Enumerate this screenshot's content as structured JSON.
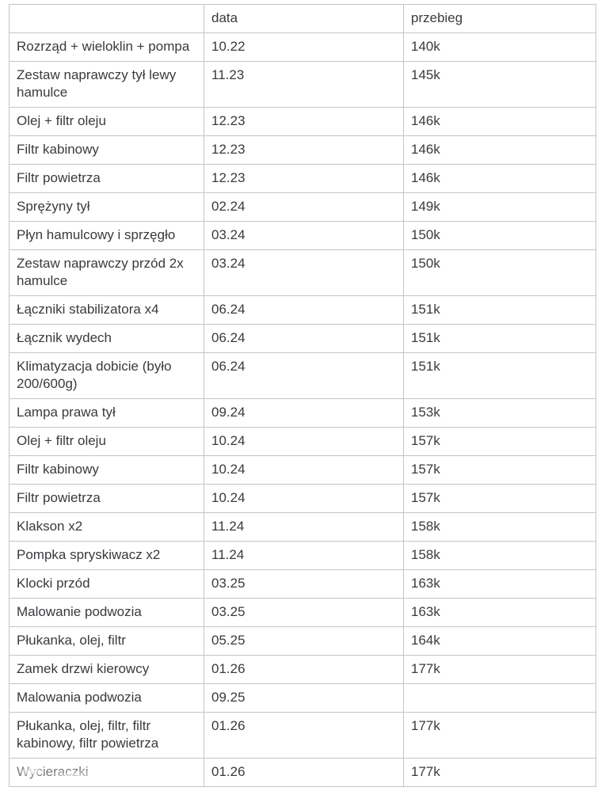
{
  "table": {
    "columns": [
      "",
      "data",
      "przebieg"
    ],
    "rows": [
      {
        "name": "Rozrząd + wieloklin + pompa",
        "data": "10.22",
        "przebieg": "140k"
      },
      {
        "name": "Zestaw naprawczy tył lewy hamulce",
        "data": "11.23",
        "przebieg": "145k"
      },
      {
        "name": "Olej + filtr oleju",
        "data": "12.23",
        "przebieg": "146k"
      },
      {
        "name": "Filtr kabinowy",
        "data": "12.23",
        "przebieg": "146k"
      },
      {
        "name": "Filtr powietrza",
        "data": "12.23",
        "przebieg": "146k"
      },
      {
        "name": "Sprężyny tył",
        "data": "02.24",
        "przebieg": "149k"
      },
      {
        "name": "Płyn hamulcowy i sprzęgło",
        "data": "03.24",
        "przebieg": "150k"
      },
      {
        "name": "Zestaw naprawczy przód 2x hamulce",
        "data": "03.24",
        "przebieg": "150k"
      },
      {
        "name": "Łączniki stabilizatora x4",
        "data": "06.24",
        "przebieg": "151k"
      },
      {
        "name": "Łącznik wydech",
        "data": "06.24",
        "przebieg": "151k"
      },
      {
        "name": "Klimatyzacja dobicie (było 200/600g)",
        "data": "06.24",
        "przebieg": "151k"
      },
      {
        "name": "Lampa prawa tył",
        "data": "09.24",
        "przebieg": "153k"
      },
      {
        "name": "Olej + filtr oleju",
        "data": "10.24",
        "przebieg": "157k"
      },
      {
        "name": "Filtr kabinowy",
        "data": "10.24",
        "przebieg": "157k"
      },
      {
        "name": "Filtr powietrza",
        "data": "10.24",
        "przebieg": "157k"
      },
      {
        "name": "Klakson x2",
        "data": "11.24",
        "przebieg": "158k"
      },
      {
        "name": "Pompka spryskiwacz x2",
        "data": "11.24",
        "przebieg": "158k"
      },
      {
        "name": "Klocki przód",
        "data": "03.25",
        "przebieg": "163k"
      },
      {
        "name": "Malowanie podwozia",
        "data": "03.25",
        "przebieg": "163k"
      },
      {
        "name": "Płukanka, olej, filtr",
        "data": "05.25",
        "przebieg": "164k"
      },
      {
        "name": "Zamek drzwi kierowcy",
        "data": "01.26",
        "przebieg": "177k"
      },
      {
        "name": "Malowania podwozia",
        "data": "09.25",
        "przebieg": ""
      },
      {
        "name": "Płukanka, olej, filtr, filtr kabinowy, filtr powietrza",
        "data": "01.26",
        "przebieg": "177k"
      },
      {
        "name": "Wycieraczki",
        "data": "01.26",
        "przebieg": "177k",
        "watermarked": true
      }
    ]
  },
  "colors": {
    "text": "#3a3a3f",
    "border": "#c5c5c8",
    "background": "#ffffff"
  }
}
